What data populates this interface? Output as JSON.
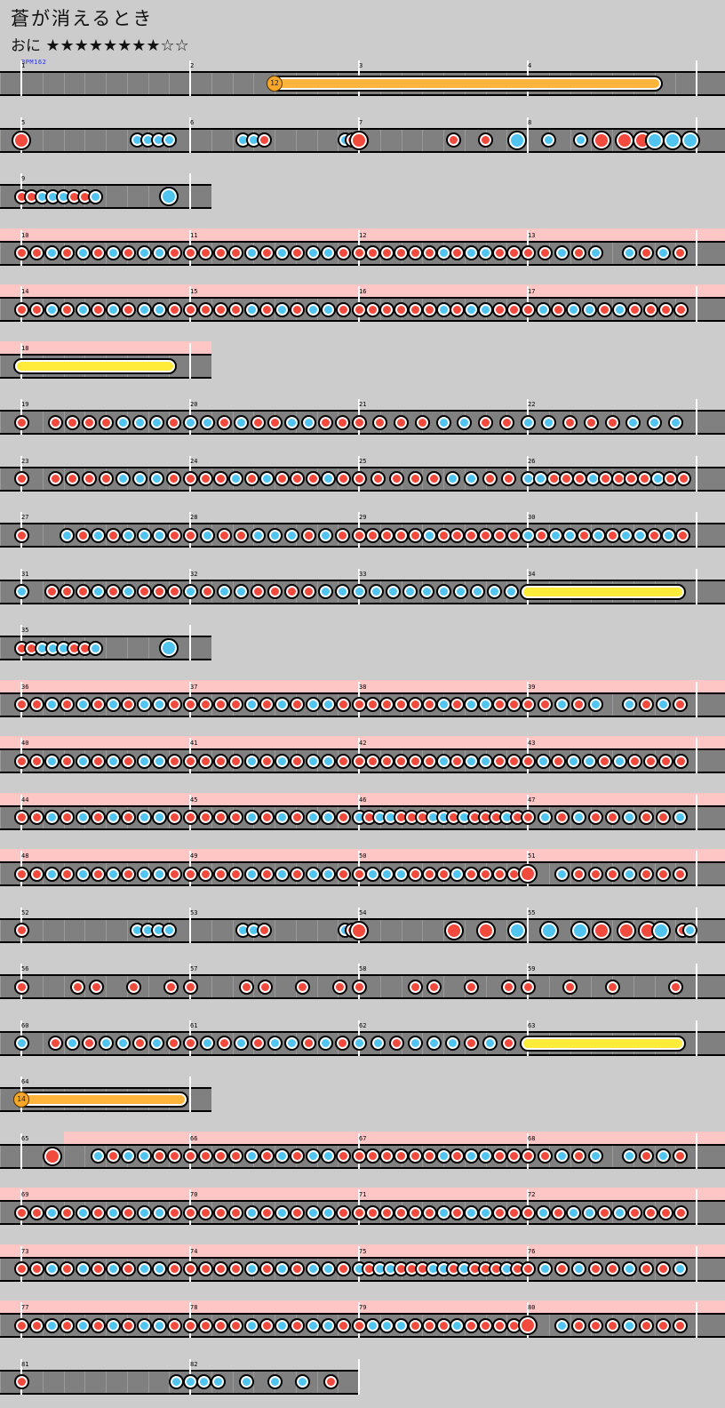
{
  "song": {
    "title": "蒼が消えるとき",
    "course": "おに",
    "stars": "★★★★★★★★☆☆",
    "level": 8,
    "max_level": 10,
    "bpm_label": "BPM162"
  },
  "colors": {
    "background": "#cccccc",
    "lane": "#808080",
    "gogo": "#ffc6c6",
    "don": "#f24a3c",
    "ka": "#52c4f0",
    "drumroll": "#ffec3a",
    "balloon": "#ffb43c"
  },
  "rows": [
    {
      "bars": [
        1,
        2,
        3,
        4
      ],
      "beats": 8,
      "gogo": false,
      "notes": "........|........|........|B-------|........|........|........|....E..."
    },
    {
      "bars": [
        5,
        6,
        7,
        8
      ],
      "beats": 8,
      "gogo": false,
      "notes": "D.......|...kkkk.|.....kkd|..........kd|D.......|.d..d..K|..k..k.D|..D..D.K..K..K"
    },
    {
      "bars": [
        9
      ],
      "beats": 4,
      "gogo": false,
      "notes": "ddkkkddk|......K."
    },
    {
      "bars": [
        10,
        11,
        12,
        13
      ],
      "beats": 8,
      "gogo": true,
      "notes": "ddkdkdkdkkd|ddddkdkdkkd|ddddddkdkkdd|ddkdk.kdkd"
    },
    {
      "bars": [
        14,
        15,
        16,
        17
      ],
      "beats": 8,
      "gogo": true,
      "notes": "ddkdkdkdkkd|ddddkdkdkkd|ddddddkdkkdd|dkdkkdkdddd"
    },
    {
      "bars": [
        18
      ],
      "beats": 4,
      "gogo": true,
      "notes": "R-------|......E."
    },
    {
      "bars": [
        19,
        20,
        21,
        22
      ],
      "beats": 8,
      "gogo": false,
      "notes": "d.ddddkkkd|kkdkddkkdd|ddddkkdd|kkdddkkk"
    },
    {
      "bars": [
        23,
        24,
        25,
        26
      ],
      "beats": 8,
      "gogo": false,
      "notes": "d.ddddkkkd|dddkdkdddkd|dddddkkdd|kkdddkddddkdd"
    },
    {
      "bars": [
        27,
        28,
        29,
        30
      ],
      "beats": 8,
      "gogo": false,
      "notes": "d..kdkdkkkd|dkddkkkdkd|dddddkdddddd|kdkkdkdkkdkd"
    },
    {
      "bars": [
        31,
        32,
        33,
        34
      ],
      "beats": 8,
      "gogo": false,
      "notes": "k.dddkdkddd|kdkkddddkk|kkkkkkkkkk|R-------E"
    },
    {
      "bars": [
        35
      ],
      "beats": 4,
      "gogo": false,
      "notes": "ddkkkddk|......K."
    },
    {
      "bars": [
        36,
        37,
        38,
        39
      ],
      "beats": 8,
      "gogo": true,
      "notes": "ddkdkdkdkkd|ddddkdkdkkd|ddddddkdkkdd|ddkdk.kdkd"
    },
    {
      "bars": [
        40,
        41,
        42,
        43
      ],
      "beats": 8,
      "gogo": true,
      "notes": "ddkdkdkdkkd|ddddkdkdkkd|ddddddkdkkdd|dkdkkdkdddd"
    },
    {
      "bars": [
        44,
        45,
        46,
        47
      ],
      "beats": 8,
      "gogo": true,
      "notes": "ddkdkdkdkkd|ddddkdkdkkd|kdkkdddkkdkdddkd|dkdkddkddk"
    },
    {
      "bars": [
        48,
        49,
        50,
        51
      ],
      "beats": 8,
      "gogo": true,
      "notes": "ddkdkdkdkkd|ddddkdkdkkd|dkkkdddkdddd|D.kdddkddd"
    },
    {
      "bars": [
        52,
        53,
        54,
        55
      ],
      "beats": 8,
      "gogo": false,
      "notes": "d.......|...kkkk.|.....kkd|..........kd|D.......|.D..D..K|..K..K.D|..D..D.K..dk"
    },
    {
      "bars": [
        56,
        57,
        58,
        59
      ],
      "beats": 8,
      "gogo": false,
      "notes": "d..dd.d.d|d..dd.d.d|d..dd.d.d|d.d.d..d"
    },
    {
      "bars": [
        60,
        61,
        62,
        63
      ],
      "beats": 8,
      "gogo": false,
      "notes": "k.dkdkkdkd|dkdkdkkdkd|kkdkkkdkd|R-------E"
    },
    {
      "bars": [
        64
      ],
      "beats": 4,
      "gogo": false,
      "notes": "B-------|........E"
    },
    {
      "bars": [
        65,
        66,
        67,
        68
      ],
      "beats": 8,
      "gogo": "partial",
      "notes": "..D..kdkkdd|ddddkdkdkkd|ddddddkdkkdd|ddkdk.kdkd"
    },
    {
      "bars": [
        69,
        70,
        71,
        72
      ],
      "beats": 8,
      "gogo": true,
      "notes": "ddkdkdkdkkd|ddddkdkdkkd|ddddddkdkkdd|dkdkkdkdddd"
    },
    {
      "bars": [
        73,
        74,
        75,
        76
      ],
      "beats": 8,
      "gogo": true,
      "notes": "ddkdkdkdkkd|ddddkdkdkkd|kdkkdddkkdkdddkd|dkdkddkddk"
    },
    {
      "bars": [
        77,
        78,
        79,
        80
      ],
      "beats": 8,
      "gogo": true,
      "notes": "ddkdkdkdkkd|ddddkdkdkkd|dkkkdddkdddd|D.kdddkddd"
    },
    {
      "bars": [
        81,
        82
      ],
      "beats": 8,
      "gogo": false,
      "notes": "d.......|...kkkk.|kkkd"
    }
  ],
  "balloon_hits": [
    "12",
    "14"
  ]
}
